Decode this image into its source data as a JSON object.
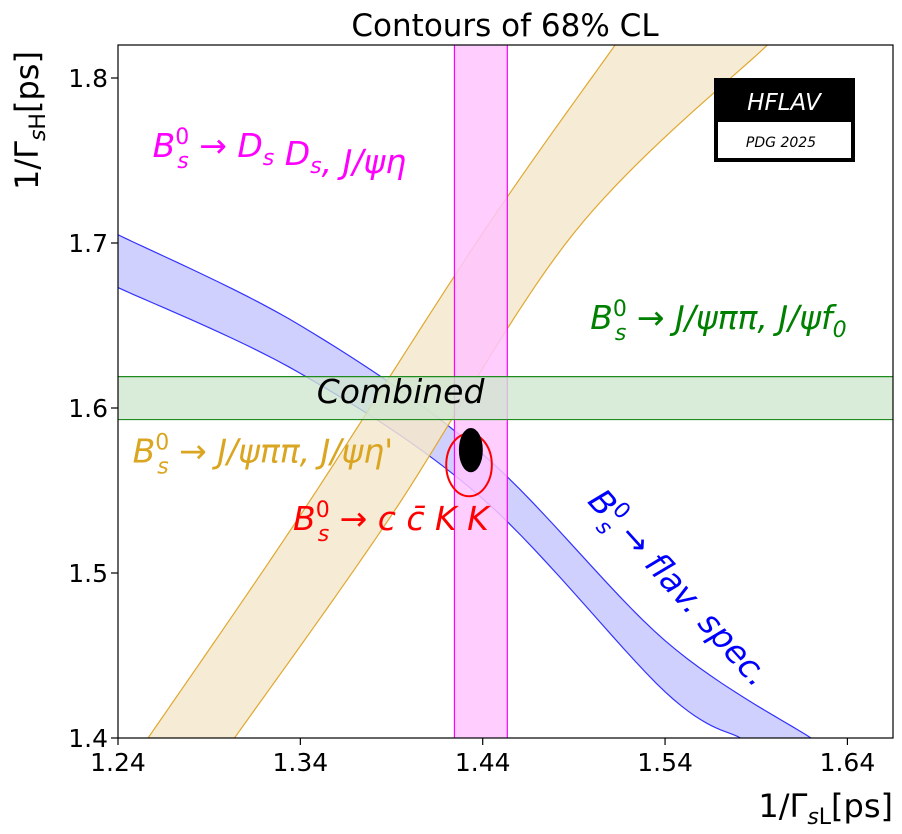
{
  "chart_data": {
    "type": "contour",
    "title": "Contours of 68% CL",
    "xlabel": "1/Γ_sL[ps]",
    "ylabel": "1/Γ_sH[ps]",
    "xlim": [
      1.24,
      1.665
    ],
    "ylim": [
      1.4,
      1.82
    ],
    "xticks": [
      "1.24",
      "1.34",
      "1.44",
      "1.54",
      "1.64"
    ],
    "yticks": [
      "1.4",
      "1.5",
      "1.6",
      "1.7",
      "1.8"
    ],
    "xtick_values": [
      1.24,
      1.34,
      1.44,
      1.54,
      1.64
    ],
    "ytick_values": [
      1.4,
      1.5,
      1.6,
      1.7,
      1.8
    ],
    "grid": false,
    "series": [
      {
        "name": "B_s^0 → D_s D_s, J/ψη",
        "kind": "vertical_band",
        "x_range": [
          1.4245,
          1.4535
        ],
        "fill": "#ffc6ff",
        "stroke": "#ff00ff"
      },
      {
        "name": "B_s^0 → J/ψππ, J/ψf_0",
        "kind": "horizontal_band",
        "y_range": [
          1.593,
          1.619
        ],
        "fill": "#cfe6cf",
        "stroke": "#208c20"
      },
      {
        "name": "B_s^0 → flav. spec.",
        "kind": "curved_band",
        "lower_edge": [
          [
            1.24,
            1.673
          ],
          [
            1.34,
            1.621
          ],
          [
            1.44,
            1.545
          ],
          [
            1.54,
            1.428
          ],
          [
            1.5813,
            1.4
          ]
        ],
        "upper_edge": [
          [
            1.24,
            1.705
          ],
          [
            1.34,
            1.65
          ],
          [
            1.44,
            1.572
          ],
          [
            1.54,
            1.459
          ],
          [
            1.62,
            1.4
          ]
        ],
        "fill": "#c8c8ff",
        "stroke": "#3333ff"
      },
      {
        "name": "B_s^0 → J/ψππ, J/ψη'",
        "kind": "curved_band",
        "left_edge": [
          [
            1.2565,
            1.4
          ],
          [
            1.34,
            1.535
          ],
          [
            1.44,
            1.706
          ],
          [
            1.5126,
            1.82
          ]
        ],
        "right_edge": [
          [
            1.3039,
            1.4
          ],
          [
            1.39,
            1.535
          ],
          [
            1.49,
            1.706
          ],
          [
            1.5961,
            1.82
          ]
        ],
        "fill": "#f5e8cc",
        "stroke": "#e0a830"
      },
      {
        "name": "B_s^0 → c c̄ K K",
        "kind": "ellipse",
        "center": [
          1.4325,
          1.5655
        ],
        "semi_axes": [
          0.0125,
          0.019
        ],
        "fill": "none",
        "stroke": "#ff0000"
      },
      {
        "name": "Combined",
        "kind": "filled_ellipse",
        "center": [
          1.4335,
          1.5745
        ],
        "semi_axes": [
          0.006,
          0.0128
        ],
        "fill": "#000000",
        "stroke": "#000000"
      }
    ],
    "annotations": [
      {
        "text": "B_s^0 → D_s D_s, J/ψη",
        "color": "#ff00ff",
        "anchor": [
          1.259,
          1.752
        ]
      },
      {
        "text": "B_s^0 → J/ψππ, J/ψf_0",
        "color": "#008000",
        "anchor": [
          1.499,
          1.648
        ]
      },
      {
        "text": "Combined",
        "color": "#000000",
        "anchor": [
          1.349,
          1.603
        ]
      },
      {
        "text": "B_s^0 → J/ψππ, J/ψη'",
        "color": "#daa520",
        "anchor": [
          1.248,
          1.567
        ]
      },
      {
        "text": "B_s^0 → c c̄ K K",
        "color": "#ff0000",
        "anchor": [
          1.336,
          1.526
        ]
      },
      {
        "text": "B_s^0 → flav. spec.",
        "color": "#0000ff",
        "anchor": [
          1.497,
          1.543
        ],
        "rotation": 48
      }
    ]
  },
  "logo": {
    "main_text": "HFLAV",
    "sub_text": "PDG 2025"
  }
}
